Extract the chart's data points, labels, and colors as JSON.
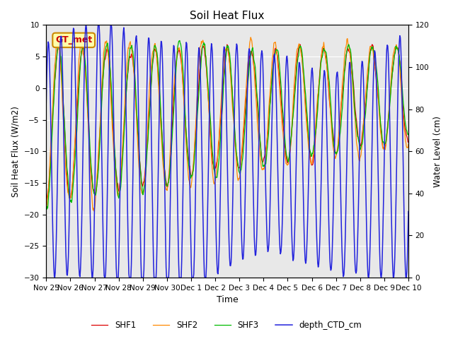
{
  "title": "Soil Heat Flux",
  "ylabel_left": "Soil Heat Flux (W/m2)",
  "ylabel_right": "Water Level (cm)",
  "xlabel": "Time",
  "annotation_text": "GT_met",
  "ylim_left": [
    -30,
    10
  ],
  "ylim_right": [
    0,
    120
  ],
  "yticks_left": [
    -30,
    -25,
    -20,
    -15,
    -10,
    -5,
    0,
    5,
    10
  ],
  "yticks_right": [
    0,
    20,
    40,
    60,
    80,
    100,
    120
  ],
  "legend_labels": [
    "SHF1",
    "SHF2",
    "SHF3",
    "depth_CTD_cm"
  ],
  "line_colors": [
    "#dd0000",
    "#ff8800",
    "#00bb00",
    "#2222dd"
  ],
  "background_color": "#e8e8e8",
  "fig_background": "#ffffff",
  "annotation_box_color": "#ffffaa",
  "annotation_text_color": "#cc0000",
  "annotation_border_color": "#cc8800"
}
